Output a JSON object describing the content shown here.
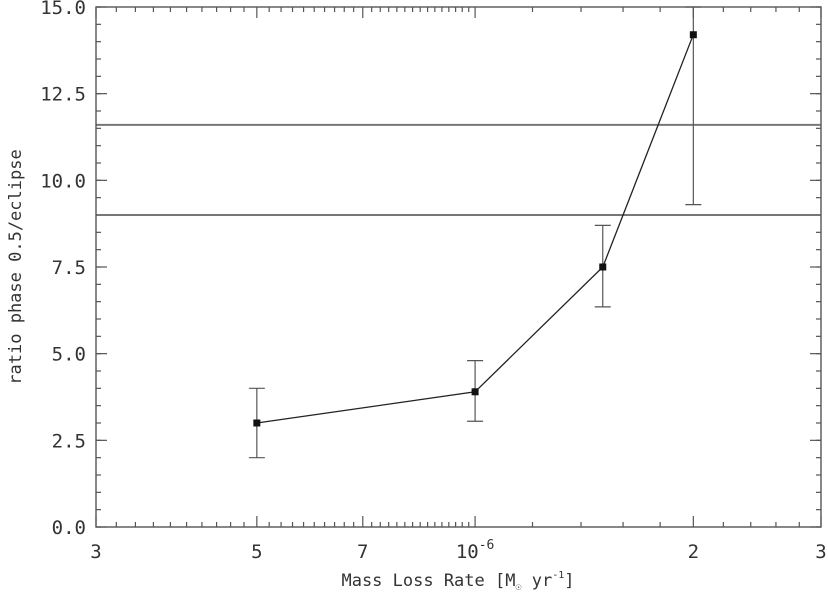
{
  "chart_data": {
    "type": "scatter",
    "xscale": "log",
    "xlim": [
      3e-07,
      3e-06
    ],
    "ylim": [
      0.0,
      15.0
    ],
    "xlabel_parts": {
      "pre": "Mass Loss Rate [M",
      "sub": "☉",
      "mid": " yr",
      "sup": "-1",
      "post": "]"
    },
    "ylabel": "ratio phase 0.5/eclipse",
    "x_major_ticks": [
      {
        "value": 3e-07,
        "label": "3"
      },
      {
        "value": 5e-07,
        "label": "5"
      },
      {
        "value": 7e-07,
        "label": "7"
      },
      {
        "value": 1e-06,
        "label": "10",
        "exp": "-6"
      },
      {
        "value": 2e-06,
        "label": "2"
      },
      {
        "value": 3e-06,
        "label": "3"
      }
    ],
    "x_minor_ticks": [
      3.2e-07,
      3.4e-07,
      3.6e-07,
      3.8e-07,
      4e-07,
      4.2e-07,
      4.4e-07,
      4.6e-07,
      4.8e-07,
      5.2e-07,
      5.4e-07,
      5.6e-07,
      5.8e-07,
      6e-07,
      6.2e-07,
      6.4e-07,
      6.6e-07,
      6.8e-07,
      7.2e-07,
      7.4e-07,
      7.6e-07,
      7.8e-07,
      8e-07,
      8.2e-07,
      8.4e-07,
      8.6e-07,
      8.8e-07,
      9e-07,
      9.2e-07,
      9.4e-07,
      9.6e-07,
      9.8e-07,
      1.2e-06,
      1.4e-06,
      1.6e-06,
      1.8e-06,
      2.2e-06,
      2.4e-06,
      2.6e-06,
      2.8e-06
    ],
    "y_ticks": [
      {
        "value": 0.0,
        "label": "0.0"
      },
      {
        "value": 2.5,
        "label": "2.5"
      },
      {
        "value": 5.0,
        "label": "5.0"
      },
      {
        "value": 7.5,
        "label": "7.5"
      },
      {
        "value": 10.0,
        "label": "10.0"
      },
      {
        "value": 12.5,
        "label": "12.5"
      },
      {
        "value": 15.0,
        "label": "15.0"
      }
    ],
    "y_minor_step": 0.5,
    "points": [
      {
        "x": 5e-07,
        "y": 3.0,
        "err_low": 2.0,
        "err_high": 4.0
      },
      {
        "x": 1e-06,
        "y": 3.9,
        "err_low": 3.05,
        "err_high": 4.8
      },
      {
        "x": 1.5e-06,
        "y": 7.5,
        "err_low": 6.35,
        "err_high": 8.7
      },
      {
        "x": 2e-06,
        "y": 14.2,
        "err_low": 9.3,
        "err_high": 15.0
      }
    ],
    "reference_lines": [
      {
        "y": 11.6
      },
      {
        "y": 9.0
      }
    ]
  }
}
